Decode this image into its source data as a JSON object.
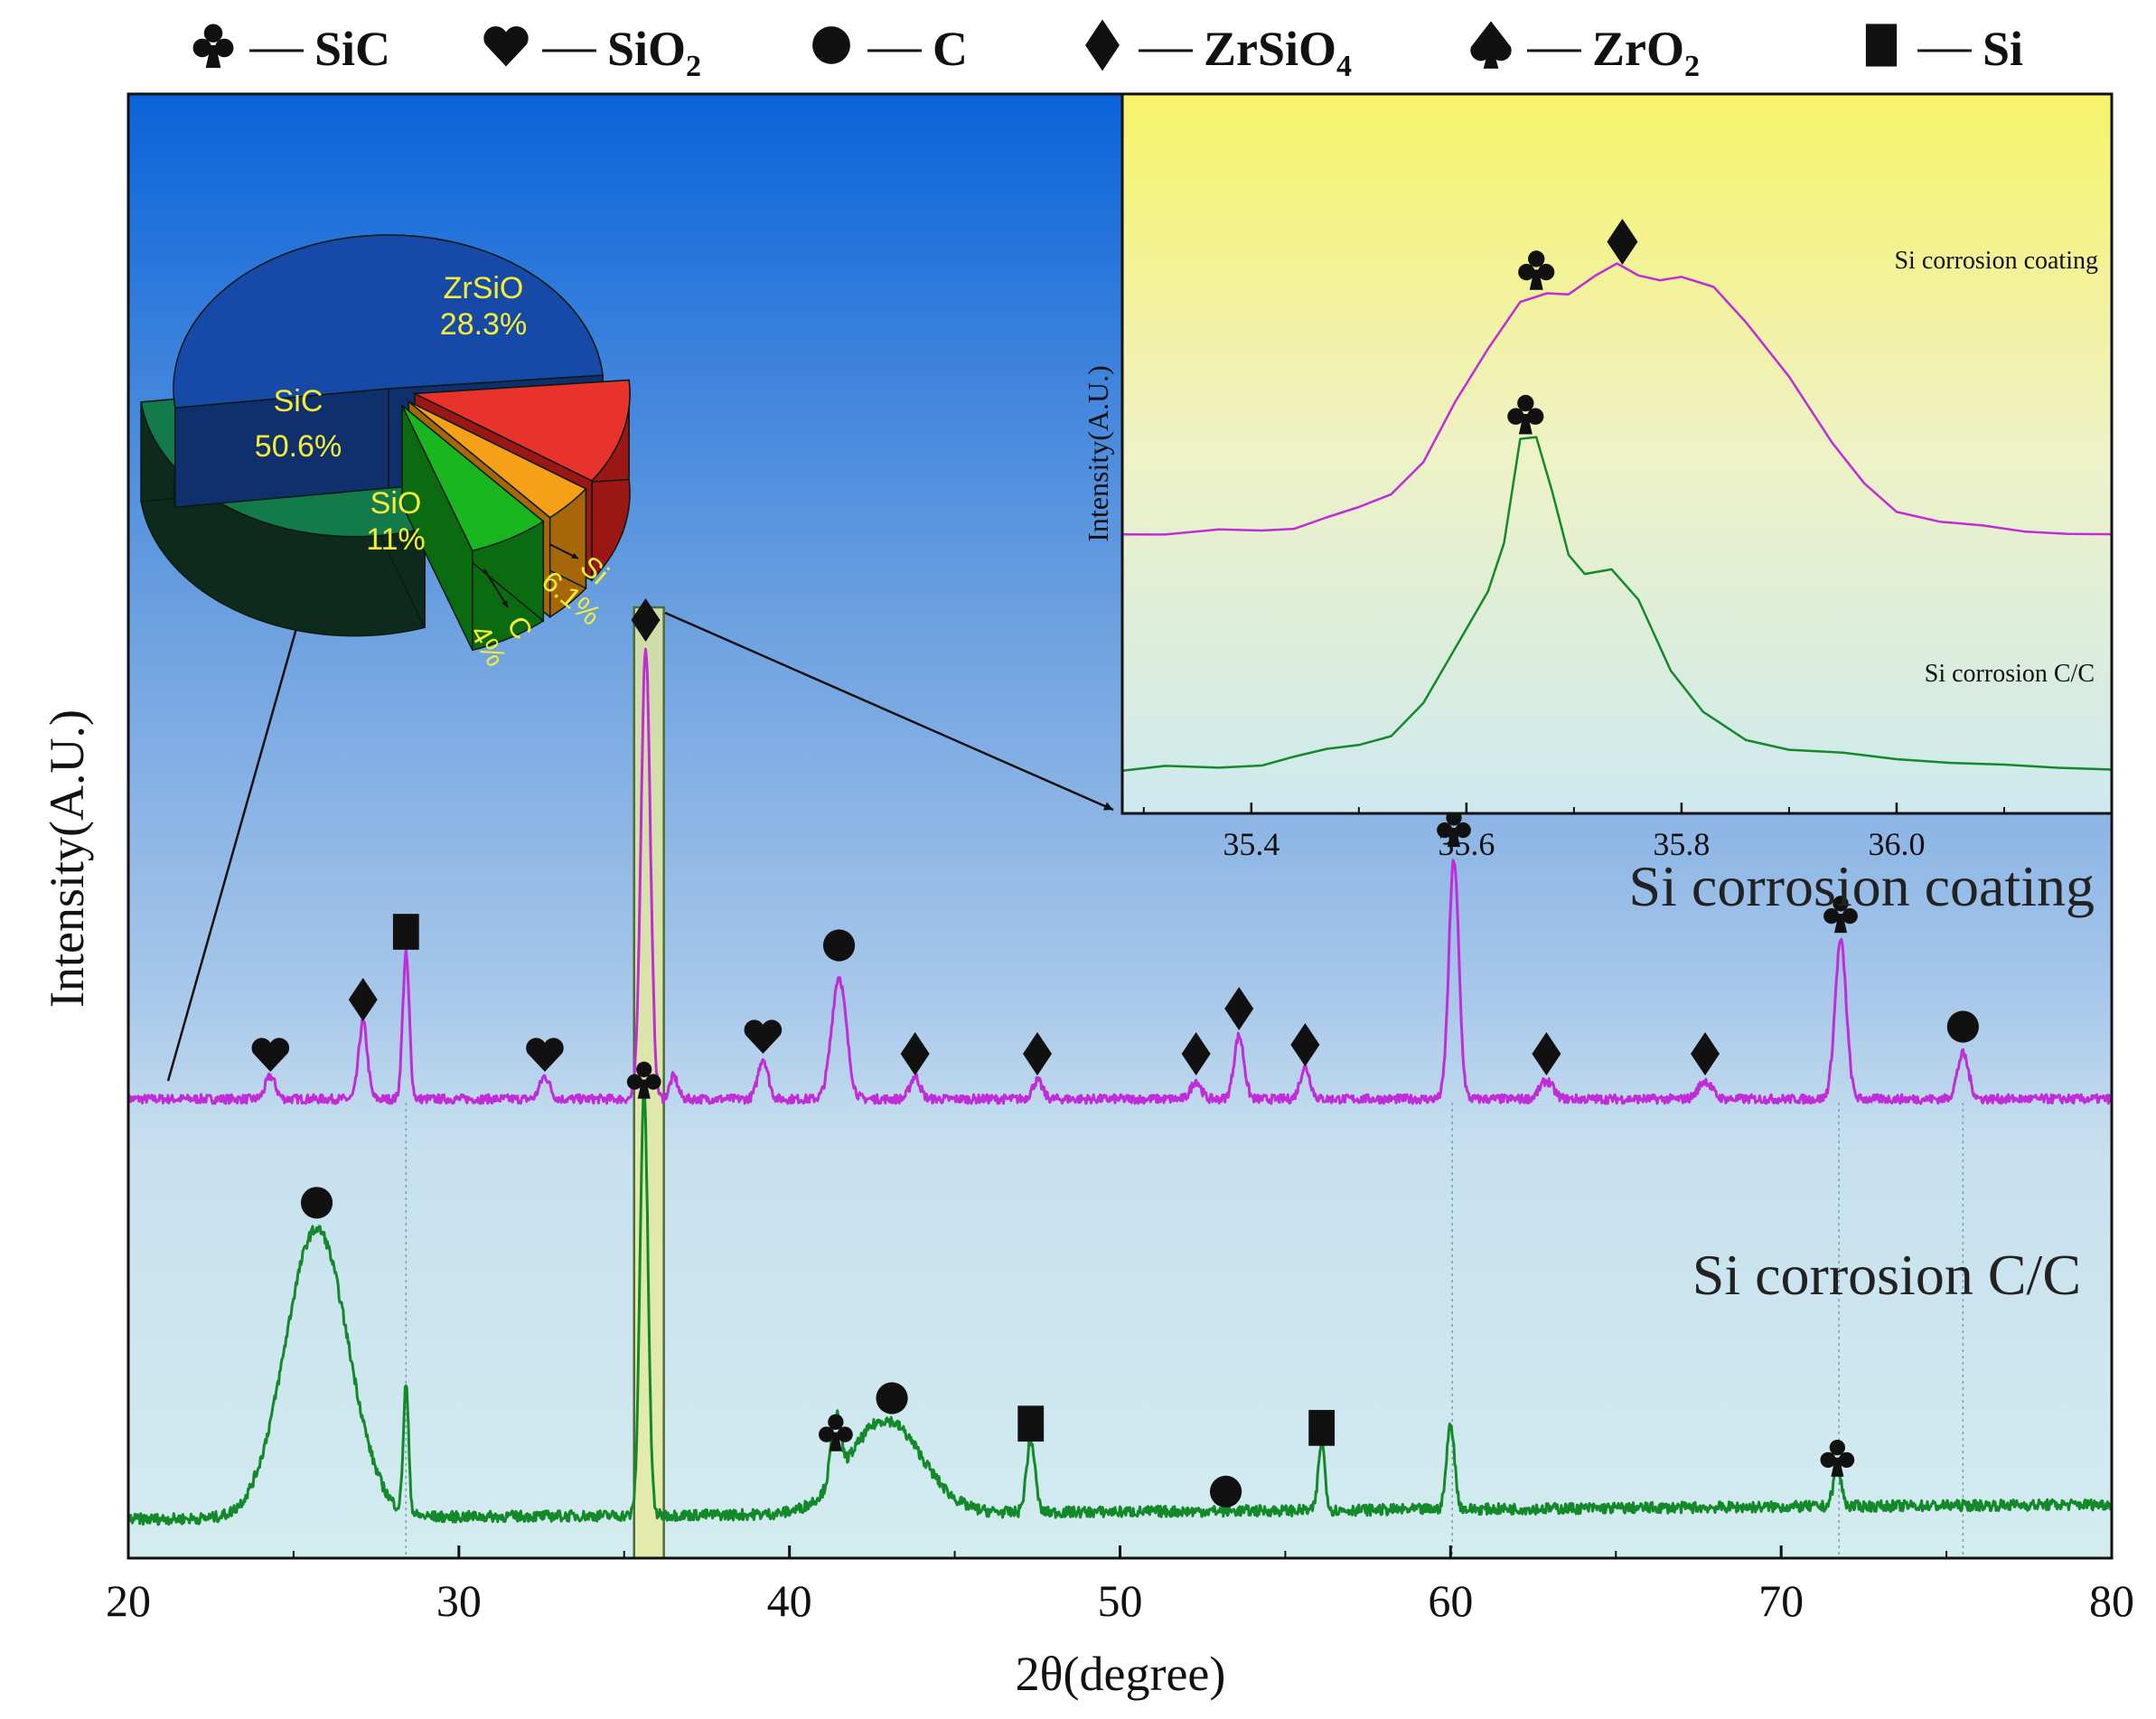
{
  "chart_data": [
    {
      "type": "line",
      "xlabel": "2θ(degree)",
      "ylabel": "Intensity(A.U.)",
      "xlim": [
        20,
        80
      ],
      "xticks": [
        20,
        30,
        40,
        50,
        60,
        70,
        80
      ],
      "legend": {
        "placement": "top",
        "entries": [
          {
            "symbol": "club",
            "label": "SiC"
          },
          {
            "symbol": "heart",
            "label": "SiO2"
          },
          {
            "symbol": "circle",
            "label": "C"
          },
          {
            "symbol": "diamond",
            "label": "ZrSiO4"
          },
          {
            "symbol": "spade",
            "label": "ZrO2"
          },
          {
            "symbol": "square",
            "label": "Si"
          }
        ]
      },
      "highlight_band": [
        35.3,
        36.2
      ],
      "series": [
        {
          "name": "Si corrosion coating",
          "color": "#c12bd8",
          "baseline": 0.0,
          "noise": 0.01,
          "peaks": [
            {
              "x": 24.3,
              "h": 0.05,
              "w": 0.15
            },
            {
              "x": 27.1,
              "h": 0.17,
              "w": 0.13
            },
            {
              "x": 28.4,
              "h": 0.32,
              "w": 0.1
            },
            {
              "x": 32.6,
              "h": 0.05,
              "w": 0.15
            },
            {
              "x": 35.65,
              "h": 1.0,
              "w": 0.14
            },
            {
              "x": 36.5,
              "h": 0.05,
              "w": 0.12
            },
            {
              "x": 39.2,
              "h": 0.09,
              "w": 0.15
            },
            {
              "x": 41.5,
              "h": 0.27,
              "w": 0.22
            },
            {
              "x": 43.8,
              "h": 0.05,
              "w": 0.15
            },
            {
              "x": 47.5,
              "h": 0.04,
              "w": 0.15
            },
            {
              "x": 52.3,
              "h": 0.04,
              "w": 0.15
            },
            {
              "x": 53.6,
              "h": 0.14,
              "w": 0.15
            },
            {
              "x": 55.6,
              "h": 0.07,
              "w": 0.15
            },
            {
              "x": 60.1,
              "h": 0.53,
              "w": 0.15
            },
            {
              "x": 62.9,
              "h": 0.04,
              "w": 0.2
            },
            {
              "x": 67.7,
              "h": 0.04,
              "w": 0.2
            },
            {
              "x": 71.8,
              "h": 0.35,
              "w": 0.17
            },
            {
              "x": 75.5,
              "h": 0.1,
              "w": 0.17
            }
          ],
          "markers": [
            {
              "x": 24.3,
              "symbol": "heart",
              "y": 0.1
            },
            {
              "x": 27.1,
              "symbol": "diamond",
              "y": 0.22
            },
            {
              "x": 28.4,
              "symbol": "square",
              "y": 0.37
            },
            {
              "x": 32.6,
              "symbol": "heart",
              "y": 0.1
            },
            {
              "x": 35.65,
              "symbol": "diamond",
              "y": 1.06
            },
            {
              "x": 39.2,
              "symbol": "heart",
              "y": 0.14
            },
            {
              "x": 41.5,
              "symbol": "circle",
              "y": 0.34
            },
            {
              "x": 43.8,
              "symbol": "diamond",
              "y": 0.1
            },
            {
              "x": 47.5,
              "symbol": "diamond",
              "y": 0.1
            },
            {
              "x": 52.3,
              "symbol": "diamond",
              "y": 0.1
            },
            {
              "x": 53.6,
              "symbol": "diamond",
              "y": 0.2
            },
            {
              "x": 55.6,
              "symbol": "diamond",
              "y": 0.12
            },
            {
              "x": 60.1,
              "symbol": "club",
              "y": 0.6
            },
            {
              "x": 62.9,
              "symbol": "diamond",
              "y": 0.1
            },
            {
              "x": 67.7,
              "symbol": "diamond",
              "y": 0.1
            },
            {
              "x": 71.8,
              "symbol": "club",
              "y": 0.41
            },
            {
              "x": 75.5,
              "symbol": "circle",
              "y": 0.16
            }
          ]
        },
        {
          "name": "Si corrosion C/C",
          "color": "#14892a",
          "baseline": 0.0,
          "noise": 0.013,
          "peaks": [
            {
              "x": 25.7,
              "h": 0.68,
              "w": 0.95
            },
            {
              "x": 28.4,
              "h": 0.3,
              "w": 0.08
            },
            {
              "x": 35.6,
              "h": 1.0,
              "w": 0.12
            },
            {
              "x": 41.4,
              "h": 0.15,
              "w": 0.14
            },
            {
              "x": 42.9,
              "h": 0.22,
              "w": 1.1
            },
            {
              "x": 47.3,
              "h": 0.17,
              "w": 0.13
            },
            {
              "x": 56.1,
              "h": 0.16,
              "w": 0.1
            },
            {
              "x": 60.0,
              "h": 0.2,
              "w": 0.12
            },
            {
              "x": 71.7,
              "h": 0.09,
              "w": 0.12
            }
          ],
          "markers": [
            {
              "x": 25.7,
              "symbol": "circle",
              "y": 0.76
            },
            {
              "x": 35.6,
              "symbol": "club",
              "y": 1.05
            },
            {
              "x": 41.4,
              "symbol": "club",
              "y": 0.22
            },
            {
              "x": 43.1,
              "symbol": "circle",
              "y": 0.3
            },
            {
              "x": 47.3,
              "symbol": "square",
              "y": 0.24
            },
            {
              "x": 53.2,
              "symbol": "circle",
              "y": 0.08
            },
            {
              "x": 56.1,
              "symbol": "square",
              "y": 0.23
            },
            {
              "x": 71.7,
              "symbol": "club",
              "y": 0.16
            }
          ]
        }
      ],
      "guide_lines_x": [
        28.4,
        60.05,
        71.75,
        75.5
      ]
    },
    {
      "type": "line",
      "inset": true,
      "ylabel": "Intensity(A.U.)",
      "xlim": [
        35.28,
        36.2
      ],
      "xticks": [
        "35.4",
        "35.6",
        "35.8",
        "36.0"
      ],
      "series": [
        {
          "name": "Si corrosion coating",
          "color": "#c12bd8",
          "points": [
            [
              35.28,
              0.54
            ],
            [
              35.32,
              0.545
            ],
            [
              35.37,
              0.55
            ],
            [
              35.41,
              0.55
            ],
            [
              35.44,
              0.553
            ],
            [
              35.47,
              0.575
            ],
            [
              35.5,
              0.6
            ],
            [
              35.53,
              0.63
            ],
            [
              35.56,
              0.7
            ],
            [
              35.59,
              0.83
            ],
            [
              35.62,
              0.94
            ],
            [
              35.65,
              1.04
            ],
            [
              35.675,
              1.06
            ],
            [
              35.695,
              1.055
            ],
            [
              35.72,
              1.1
            ],
            [
              35.74,
              1.12
            ],
            [
              35.76,
              1.1
            ],
            [
              35.78,
              1.09
            ],
            [
              35.8,
              1.095
            ],
            [
              35.83,
              1.07
            ],
            [
              35.86,
              1.0
            ],
            [
              35.9,
              0.88
            ],
            [
              35.94,
              0.74
            ],
            [
              35.97,
              0.65
            ],
            [
              36.0,
              0.59
            ],
            [
              36.04,
              0.57
            ],
            [
              36.08,
              0.56
            ],
            [
              36.12,
              0.55
            ],
            [
              36.16,
              0.54
            ],
            [
              36.2,
              0.54
            ]
          ],
          "markers": [
            {
              "x": 35.665,
              "symbol": "club",
              "y": 1.11
            },
            {
              "x": 35.745,
              "symbol": "diamond",
              "y": 1.17
            }
          ]
        },
        {
          "name": "Si corrosion C/C",
          "color": "#14892a",
          "points": [
            [
              35.28,
              0.03
            ],
            [
              35.32,
              0.04
            ],
            [
              35.37,
              0.04
            ],
            [
              35.41,
              0.045
            ],
            [
              35.44,
              0.06
            ],
            [
              35.47,
              0.08
            ],
            [
              35.5,
              0.09
            ],
            [
              35.53,
              0.11
            ],
            [
              35.56,
              0.18
            ],
            [
              35.59,
              0.3
            ],
            [
              35.62,
              0.42
            ],
            [
              35.635,
              0.52
            ],
            [
              35.65,
              0.75
            ],
            [
              35.665,
              0.75
            ],
            [
              35.68,
              0.63
            ],
            [
              35.695,
              0.5
            ],
            [
              35.71,
              0.46
            ],
            [
              35.735,
              0.47
            ],
            [
              35.76,
              0.4
            ],
            [
              35.79,
              0.25
            ],
            [
              35.82,
              0.16
            ],
            [
              35.86,
              0.1
            ],
            [
              35.9,
              0.08
            ],
            [
              35.95,
              0.07
            ],
            [
              36.0,
              0.06
            ],
            [
              36.05,
              0.05
            ],
            [
              36.1,
              0.045
            ],
            [
              36.15,
              0.04
            ],
            [
              36.2,
              0.035
            ]
          ],
          "markers": [
            {
              "x": 35.655,
              "symbol": "club",
              "y": 0.8
            }
          ]
        }
      ]
    },
    {
      "type": "pie",
      "style": "3d-exploded",
      "slices": [
        {
          "label": "SiC",
          "value": 50.6,
          "text": "50.6%",
          "color": "#1649a8",
          "side": "#0f2f6d",
          "text_color": "#f4ee37"
        },
        {
          "label": "SiO₂",
          "value": 11.0,
          "text": "11%",
          "color": "#e8322c",
          "side": "#9a1714",
          "text_color": "#f4ee37"
        },
        {
          "label": "C",
          "value": 4.0,
          "text": "4%",
          "color": "#f5a017",
          "side": "#a76709",
          "text_color": "#f4ee37"
        },
        {
          "label": "Si",
          "value": 6.1,
          "text": "6.1%",
          "color": "#19b61f",
          "side": "#0b6b10",
          "text_color": "#f4ee37"
        },
        {
          "label": "ZrSiO₄",
          "value": 28.3,
          "text": "28.3%",
          "color": "#137a4c",
          "side": "#0e2a1d",
          "text_color": "#f4ee37"
        }
      ]
    }
  ]
}
